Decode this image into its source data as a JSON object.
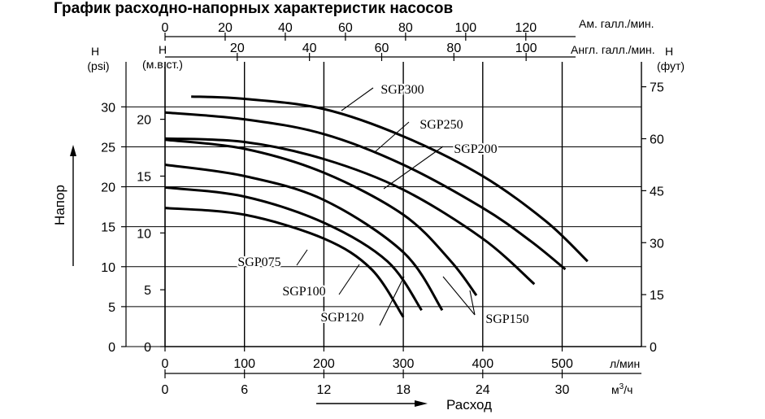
{
  "title": "График расходно-напорных характеристик насосов",
  "chart_data": {
    "type": "line",
    "title": "График расходно-напорных характеристик насосов",
    "xlabel": "Расход",
    "ylabel": "Напор",
    "xlim": [
      0,
      550
    ],
    "ylim": [
      0,
      23
    ],
    "grid": true,
    "x_axes": {
      "lmin": {
        "unit": "л/мин",
        "ticks": [
          0,
          100,
          200,
          300,
          400,
          500
        ]
      },
      "m3h": {
        "unit": "м3/ч",
        "unit_main": "м",
        "unit_sup": "3",
        "unit_tail": "/ч",
        "ticks": [
          0,
          6,
          12,
          18,
          24,
          30
        ]
      },
      "us_gpm": {
        "unit": "Ам. галл./мин.",
        "ticks": [
          0,
          20,
          40,
          60,
          80,
          100,
          120
        ]
      },
      "uk_gpm": {
        "unit": "Англ. галл./мин.",
        "ticks": [
          20,
          40,
          60,
          80,
          100
        ]
      }
    },
    "y_axes": {
      "m": {
        "header": "H",
        "unit": "(м.в.ст.)",
        "ticks": [
          0,
          5,
          10,
          15,
          20
        ]
      },
      "psi": {
        "header": "H",
        "unit": "(psi)",
        "ticks": [
          0,
          5,
          10,
          15,
          20,
          25,
          30
        ]
      },
      "ft": {
        "header": "H",
        "unit": "(фут)",
        "ticks": [
          0,
          15,
          30,
          45,
          60,
          75
        ]
      }
    },
    "series": [
      {
        "name": "SGP300",
        "points": [
          [
            33,
            22.0
          ],
          [
            100,
            21.8
          ],
          [
            200,
            20.9
          ],
          [
            300,
            18.5
          ],
          [
            400,
            15.0
          ],
          [
            480,
            11.0
          ],
          [
            532,
            7.5
          ]
        ]
      },
      {
        "name": "SGP250",
        "points": [
          [
            0,
            20.6
          ],
          [
            100,
            20.0
          ],
          [
            200,
            18.7
          ],
          [
            300,
            16.0
          ],
          [
            400,
            12.2
          ],
          [
            460,
            9.3
          ],
          [
            504,
            6.8
          ]
        ]
      },
      {
        "name": "SGP200",
        "points": [
          [
            0,
            18.3
          ],
          [
            100,
            18.0
          ],
          [
            200,
            16.5
          ],
          [
            300,
            13.8
          ],
          [
            400,
            9.5
          ],
          [
            465,
            5.5
          ]
        ]
      },
      {
        "name": "SGP150",
        "points": [
          [
            0,
            18.2
          ],
          [
            100,
            17.4
          ],
          [
            200,
            15.3
          ],
          [
            300,
            11.6
          ],
          [
            360,
            7.5
          ],
          [
            392,
            4.5
          ]
        ]
      },
      {
        "name": "SGP120",
        "points": [
          [
            0,
            16.0
          ],
          [
            100,
            15.0
          ],
          [
            200,
            12.9
          ],
          [
            300,
            8.3
          ],
          [
            349,
            3.2
          ]
        ]
      },
      {
        "name": "SGP100",
        "points": [
          [
            0,
            14.0
          ],
          [
            100,
            13.2
          ],
          [
            200,
            10.9
          ],
          [
            280,
            7.5
          ],
          [
            323,
            3.2
          ]
        ]
      },
      {
        "name": "SGP075",
        "points": [
          [
            0,
            12.2
          ],
          [
            100,
            11.6
          ],
          [
            200,
            9.5
          ],
          [
            260,
            6.8
          ],
          [
            300,
            2.6
          ]
        ]
      }
    ],
    "labels": [
      {
        "name": "SGP300",
        "text": "SGP300"
      },
      {
        "name": "SGP250",
        "text": "SGP250"
      },
      {
        "name": "SGP200",
        "text": "SGP200"
      },
      {
        "name": "SGP150",
        "text": "SGP150"
      },
      {
        "name": "SGP120",
        "text": "SGP120"
      },
      {
        "name": "SGP100",
        "text": "SGP100"
      },
      {
        "name": "SGP075",
        "text": "SGP075"
      }
    ]
  }
}
